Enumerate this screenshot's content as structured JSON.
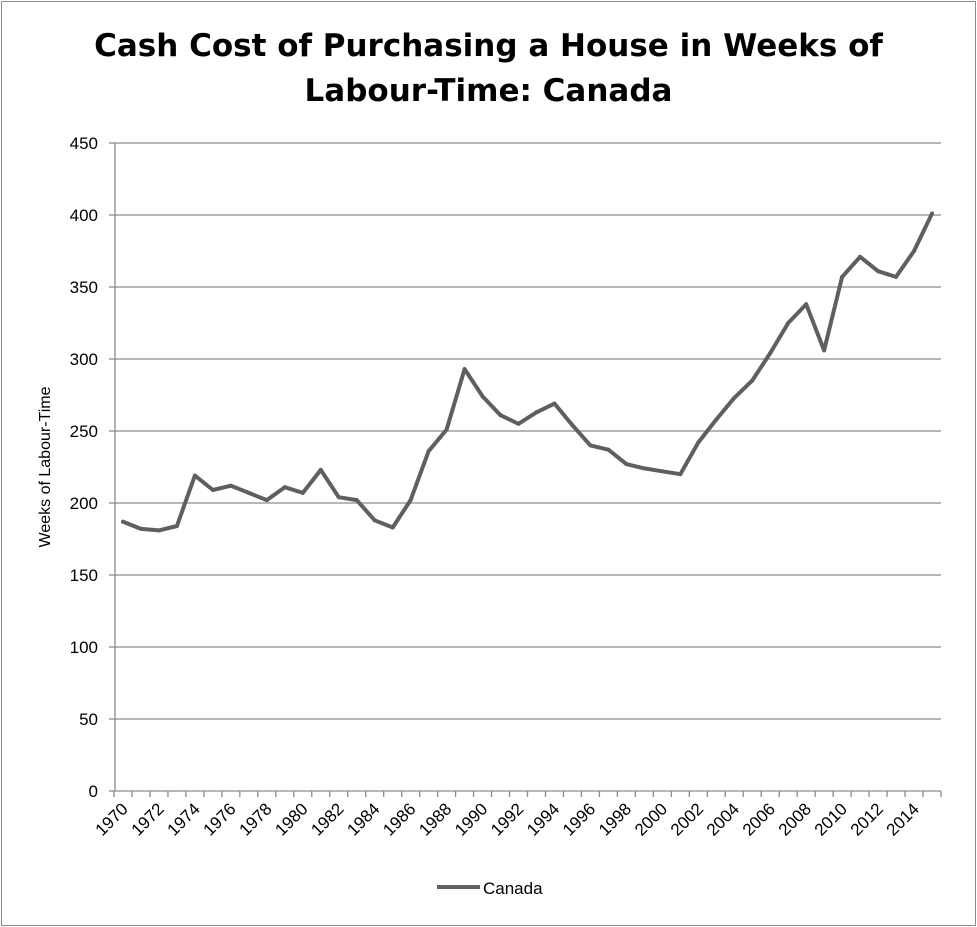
{
  "chart_data": {
    "type": "line",
    "title_lines": [
      "Cash Cost of Purchasing a House in Weeks of",
      "Labour-Time: Canada"
    ],
    "xlabel": "",
    "ylabel": "Weeks of Labour-Time",
    "ylim": [
      0,
      450
    ],
    "yticks": [
      0,
      50,
      100,
      150,
      200,
      250,
      300,
      350,
      400,
      450
    ],
    "x": [
      1970,
      1971,
      1972,
      1973,
      1974,
      1975,
      1976,
      1977,
      1978,
      1979,
      1980,
      1981,
      1982,
      1983,
      1984,
      1985,
      1986,
      1987,
      1988,
      1989,
      1990,
      1991,
      1992,
      1993,
      1994,
      1995,
      1996,
      1997,
      1998,
      1999,
      2000,
      2001,
      2002,
      2003,
      2004,
      2005,
      2006,
      2007,
      2008,
      2009,
      2010,
      2011,
      2012,
      2013,
      2014,
      2015
    ],
    "xtick_labels": [
      "1970",
      "1972",
      "1974",
      "1976",
      "1978",
      "1980",
      "1982",
      "1984",
      "1986",
      "1988",
      "1990",
      "1992",
      "1994",
      "1996",
      "1998",
      "2000",
      "2002",
      "2004",
      "2006",
      "2008",
      "2010",
      "2012",
      "2014"
    ],
    "grid": true,
    "legend_position": "bottom",
    "series": [
      {
        "name": "Canada",
        "color": "#5f5f5f",
        "values": [
          187,
          182,
          181,
          184,
          219,
          209,
          212,
          207,
          202,
          211,
          207,
          223,
          204,
          202,
          188,
          183,
          202,
          236,
          251,
          293,
          274,
          261,
          255,
          263,
          269,
          254,
          240,
          237,
          227,
          224,
          222,
          220,
          242,
          258,
          273,
          285,
          304,
          325,
          338,
          306,
          357,
          371,
          361,
          357,
          375,
          401
        ]
      }
    ]
  }
}
